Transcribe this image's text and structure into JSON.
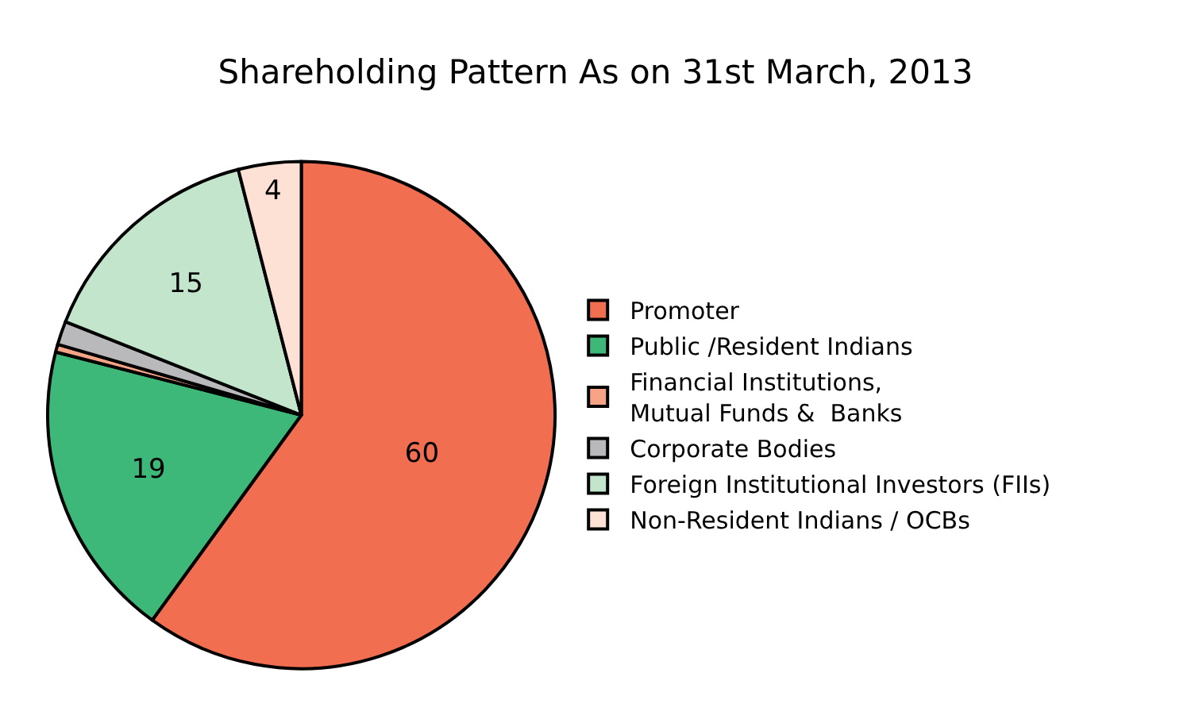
{
  "chart_data": {
    "type": "pie",
    "title": "Shareholding Pattern As on 31st March, 2013",
    "categories": [
      "Promoter",
      "Public /Resident Indians",
      "Financial Institutions,\nMutual Funds &  Banks",
      "Corporate Bodies",
      "Foreign Institutional Investors (FIIs)",
      "Non-Resident Indians / OCBs"
    ],
    "values": [
      60,
      19,
      0.5,
      1.5,
      15,
      4
    ],
    "colors": [
      "#f26e50",
      "#3eb878",
      "#f7a386",
      "#b9b9bb",
      "#c2e5cc",
      "#fde1d5"
    ],
    "value_labels": [
      "60",
      "19",
      null,
      null,
      "15",
      "4"
    ],
    "legend": "right"
  }
}
